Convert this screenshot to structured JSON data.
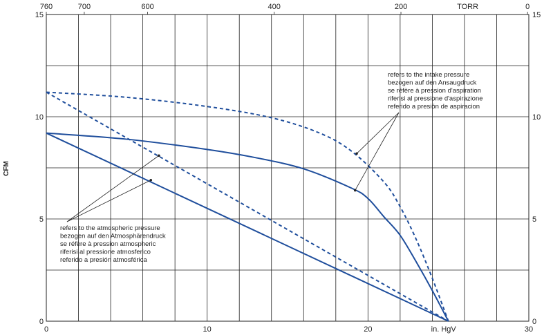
{
  "chart_data": {
    "type": "line",
    "xlabel": "in. HgV",
    "ylabel": "CFM",
    "xlim": [
      0,
      30
    ],
    "ylim": [
      0,
      15
    ],
    "x_ticks": [
      "0",
      "10",
      "20",
      "30"
    ],
    "y_ticks": [
      "0",
      "5",
      "10",
      "15"
    ],
    "top_axis": {
      "unit_label": "TORR",
      "ticks": [
        {
          "label": "760",
          "x": 0
        },
        {
          "label": "700",
          "x": 2.36
        },
        {
          "label": "600",
          "x": 6.3
        },
        {
          "label": "400",
          "x": 14.17
        },
        {
          "label": "200",
          "x": 22.05
        },
        {
          "label": "0",
          "x": 29.92
        }
      ]
    },
    "grid": true,
    "series": [
      {
        "style": "solid",
        "color": "#1f4e9c",
        "points": [
          [
            0,
            9.2
          ],
          [
            5,
            8.9
          ],
          [
            10,
            8.4
          ],
          [
            13,
            8.0
          ],
          [
            16,
            7.45
          ],
          [
            19,
            6.5
          ],
          [
            20,
            6.0
          ],
          [
            21,
            5.1
          ],
          [
            22,
            4.2
          ],
          [
            23,
            2.9
          ],
          [
            24,
            1.5
          ],
          [
            25,
            0
          ]
        ]
      },
      {
        "style": "solid",
        "color": "#1f4e9c",
        "points": [
          [
            0,
            9.2
          ],
          [
            25,
            0
          ]
        ]
      },
      {
        "style": "dashed",
        "color": "#1f4e9c",
        "points": [
          [
            0,
            11.2
          ],
          [
            5,
            10.95
          ],
          [
            10,
            10.5
          ],
          [
            14,
            9.95
          ],
          [
            17,
            9.2
          ],
          [
            19,
            8.3
          ],
          [
            21,
            6.8
          ],
          [
            22,
            5.6
          ],
          [
            23,
            4.0
          ],
          [
            24,
            2.1
          ],
          [
            25,
            0
          ]
        ]
      },
      {
        "style": "dashed",
        "color": "#1f4e9c",
        "points": [
          [
            0,
            11.2
          ],
          [
            25,
            0
          ]
        ]
      }
    ],
    "annotations": {
      "intake": {
        "lines": [
          "refers to the intake pressure",
          "bezogen auf den Ansaugdruck",
          "se réfère à pression d'aspiration",
          "riferisi al pressione d'aspirazione",
          "referido a presión de aspiracion"
        ],
        "targets": [
          [
            19.3,
            8.2
          ],
          [
            19.2,
            6.4
          ]
        ]
      },
      "atmospheric": {
        "lines": [
          "refers to the atmospheric pressure",
          "bezogen auf den Atmosphärendruck",
          "se réfère à pression atmospheric",
          "riferisi al pressione atmosferico",
          "referido a presión atmosférica"
        ],
        "targets": [
          [
            7.0,
            8.1
          ],
          [
            6.5,
            6.9
          ]
        ]
      }
    }
  }
}
